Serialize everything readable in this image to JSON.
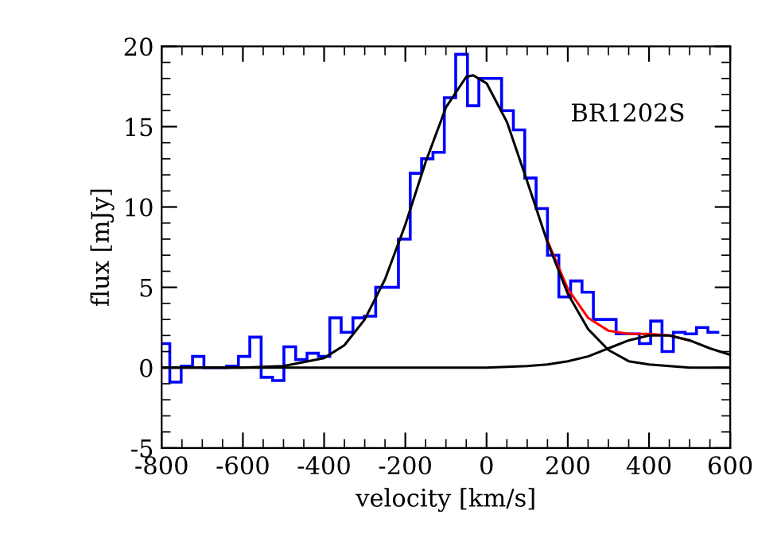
{
  "chart_data": {
    "type": "histogram",
    "xlabel": "velocity [km/s]",
    "ylabel": "flux [mJy]",
    "annotations": [
      "BR1202S"
    ],
    "bins": [
      -800,
      -780,
      -752,
      -724,
      -696,
      -668,
      -640,
      -611,
      -583,
      -555,
      -527,
      -499,
      -470,
      -442,
      -414,
      -386,
      -358,
      -329,
      -301,
      -273,
      -245,
      -217,
      -188,
      -160,
      -132,
      -104,
      -76,
      -47,
      -19,
      9,
      37,
      66,
      94,
      122,
      150,
      178,
      207,
      235,
      263,
      291,
      319,
      348,
      376,
      404,
      432,
      460,
      489,
      517,
      545,
      573
    ],
    "series": [
      {
        "color": "#0000ff",
        "values": [
          1.5,
          -0.9,
          0.1,
          0.7,
          0,
          0,
          0.1,
          0.7,
          1.9,
          -0.6,
          -0.8,
          1.3,
          0.5,
          0.9,
          0.7,
          3.1,
          2.2,
          3.1,
          3.2,
          5.0,
          5.0,
          8.0,
          12.1,
          13.0,
          13.4,
          16.8,
          19.5,
          16.3,
          18.0,
          18.0,
          16.0,
          14.8,
          11.8,
          9.9,
          7.0,
          4.4,
          5.4,
          4.7,
          3.0,
          3.0,
          2.1,
          2.1,
          1.5,
          2.9,
          1.0,
          2.2,
          2.1,
          2.5,
          2.2
        ]
      },
      {
        "type": "line",
        "color": "#ff0000",
        "x": [
          150,
          200,
          250,
          300,
          350,
          400,
          450,
          500
        ],
        "values": [
          7.9,
          4.9,
          3.1,
          2.3,
          2.1,
          2.1,
          2.0,
          1.7
        ]
      },
      {
        "type": "line",
        "color": "#000000",
        "x": [
          -800,
          -600,
          -500,
          -400,
          -350,
          -300,
          -250,
          -200,
          -150,
          -100,
          -50,
          -33,
          0,
          50,
          100,
          150,
          200,
          250,
          300,
          350,
          400,
          450,
          500,
          600
        ],
        "values": [
          0,
          0,
          0.1,
          0.6,
          1.4,
          3.0,
          5.5,
          8.9,
          12.8,
          16.2,
          18.1,
          18.2,
          17.7,
          15.3,
          11.6,
          7.8,
          4.6,
          2.4,
          1.1,
          0.4,
          0.2,
          0.1,
          0,
          0
        ]
      },
      {
        "type": "line",
        "color": "#000000",
        "x": [
          -800,
          0,
          100,
          150,
          200,
          250,
          300,
          350,
          400,
          428,
          450,
          500,
          550,
          600
        ],
        "values": [
          0,
          0,
          0.1,
          0.2,
          0.4,
          0.7,
          1.2,
          1.7,
          2.0,
          2.0,
          2.0,
          1.7,
          1.2,
          0.8
        ]
      }
    ],
    "xlim": [
      -800,
      600
    ],
    "ylim": [
      -5,
      20
    ],
    "xticks": [
      -800,
      -600,
      -400,
      -200,
      0,
      200,
      400,
      600
    ],
    "yticks": [
      -5,
      0,
      5,
      10,
      15,
      20
    ],
    "grid": false,
    "legend": false
  }
}
